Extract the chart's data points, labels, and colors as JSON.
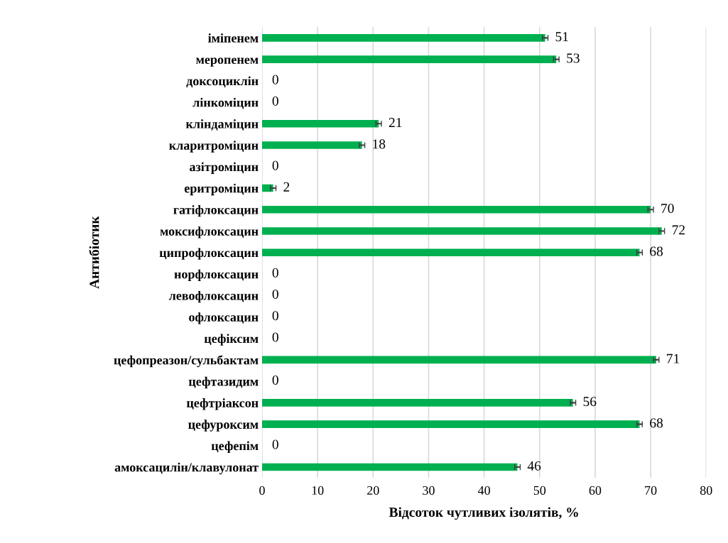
{
  "chart_data": {
    "type": "bar",
    "orientation": "horizontal",
    "xlabel": "Відсоток чутливих ізолятів, %",
    "ylabel": "Антибіотик",
    "categories": [
      "іміпенем",
      "меропенем",
      "доксоциклін",
      "лінкоміцин",
      "кліндаміцин",
      "кларитроміцин",
      "азітроміцин",
      "еритроміцин",
      "гатіфлоксацин",
      "моксифлоксацин",
      "ципрофлоксацин",
      "норфлоксацин",
      "левофлоксацин",
      "офлоксацин",
      "цефіксим",
      "цефопреазон/сульбактам",
      "цефтазидим",
      "цефтріаксон",
      "цефуроксим",
      "цефепім",
      "амоксацилін/клавулонат"
    ],
    "values": [
      51,
      53,
      0,
      0,
      21,
      18,
      0,
      2,
      70,
      72,
      68,
      0,
      0,
      0,
      0,
      71,
      0,
      56,
      68,
      0,
      46
    ],
    "errors": [
      0.5,
      0.5,
      null,
      null,
      0.5,
      0.5,
      null,
      0.5,
      0.5,
      0.5,
      0.5,
      null,
      null,
      null,
      null,
      0.5,
      null,
      0.5,
      0.5,
      null,
      0.5
    ],
    "color": "#00b050",
    "xlim": [
      0,
      80
    ],
    "xticks": [
      0,
      10,
      20,
      30,
      40,
      50,
      60,
      70,
      80
    ],
    "grid": "x",
    "data_labels": true
  }
}
